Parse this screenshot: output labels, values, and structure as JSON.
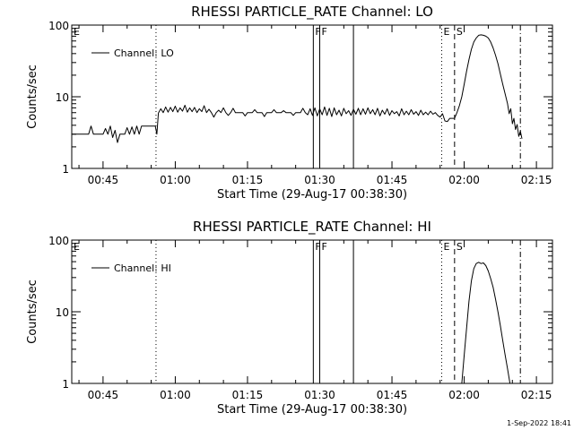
{
  "footer": {
    "timestamp": "1-Sep-2022 18:41"
  },
  "chart_data": [
    {
      "type": "line",
      "title": "RHESSI PARTICLE_RATE Channel: LO",
      "xlabel": "Start Time (29-Aug-17 00:38:30)",
      "ylabel": "Counts/sec",
      "yscale": "log",
      "xlim": [
        "00:38:30",
        "02:18:20"
      ],
      "ylim": [
        1,
        100
      ],
      "xtick_labels": [
        "00:45",
        "01:00",
        "01:15",
        "01:30",
        "01:45",
        "02:00",
        "02:15"
      ],
      "ytick_labels": [
        "1",
        "10",
        "100"
      ],
      "legend": {
        "entries": [
          "Channel: LO"
        ],
        "position": "top-left"
      },
      "markers": [
        {
          "time": "00:56:00",
          "style": "dotted",
          "label": ""
        },
        {
          "time": "01:28:40",
          "style": "solid",
          "label": "F"
        },
        {
          "time": "01:30:00",
          "style": "solid",
          "label": "F"
        },
        {
          "time": "01:37:00",
          "style": "solid",
          "label": ""
        },
        {
          "time": "01:55:20",
          "style": "dotted",
          "label": "E"
        },
        {
          "time": "01:58:00",
          "style": "dashed",
          "label": "S"
        },
        {
          "time": "02:11:40",
          "style": "dashdot",
          "label": ""
        }
      ],
      "edge_labels": [
        "E"
      ],
      "series": [
        {
          "name": "Channel: LO",
          "points": [
            [
              "00:38:30",
              3
            ],
            [
              "00:42:00",
              3
            ],
            [
              "00:42:30",
              3.9
            ],
            [
              "00:43:00",
              3
            ],
            [
              "00:45:00",
              3
            ],
            [
              "00:45:30",
              3.6
            ],
            [
              "00:46:00",
              3
            ],
            [
              "00:46:30",
              3.9
            ],
            [
              "00:47:00",
              2.7
            ],
            [
              "00:47:30",
              3.4
            ],
            [
              "00:48:00",
              2.3
            ],
            [
              "00:48:30",
              3
            ],
            [
              "00:49:30",
              3
            ],
            [
              "00:50:00",
              3.7
            ],
            [
              "00:50:30",
              3
            ],
            [
              "00:51:00",
              3.8
            ],
            [
              "00:51:30",
              3
            ],
            [
              "00:52:00",
              3.9
            ],
            [
              "00:52:30",
              3
            ],
            [
              "00:53:00",
              3.9
            ],
            [
              "00:55:50",
              3.9
            ],
            [
              "00:56:10",
              3
            ],
            [
              "00:56:30",
              5.9
            ],
            [
              "00:57:00",
              6.8
            ],
            [
              "00:57:30",
              6
            ],
            [
              "00:58:00",
              7.2
            ],
            [
              "00:58:30",
              6.1
            ],
            [
              "00:59:00",
              7.1
            ],
            [
              "00:59:30",
              6.2
            ],
            [
              "01:00:00",
              7.4
            ],
            [
              "01:00:30",
              6.1
            ],
            [
              "01:01:00",
              7
            ],
            [
              "01:01:30",
              6.3
            ],
            [
              "01:02:00",
              7.6
            ],
            [
              "01:02:30",
              6.1
            ],
            [
              "01:03:00",
              7
            ],
            [
              "01:03:30",
              6.2
            ],
            [
              "01:04:00",
              7.1
            ],
            [
              "01:04:30",
              6
            ],
            [
              "01:05:00",
              6.8
            ],
            [
              "01:05:30",
              6.2
            ],
            [
              "01:06:00",
              7.5
            ],
            [
              "01:06:30",
              6
            ],
            [
              "01:07:00",
              6.7
            ],
            [
              "01:07:30",
              6
            ],
            [
              "01:08:00",
              5.2
            ],
            [
              "01:08:30",
              6
            ],
            [
              "01:09:00",
              6.5
            ],
            [
              "01:09:30",
              6
            ],
            [
              "01:10:00",
              7
            ],
            [
              "01:10:30",
              6
            ],
            [
              "01:11:00",
              5.5
            ],
            [
              "01:11:30",
              6
            ],
            [
              "01:12:00",
              6.9
            ],
            [
              "01:12:30",
              6
            ],
            [
              "01:13:00",
              6
            ],
            [
              "01:14:00",
              6
            ],
            [
              "01:14:30",
              5.4
            ],
            [
              "01:15:00",
              6
            ],
            [
              "01:16:00",
              6
            ],
            [
              "01:16:30",
              6.6
            ],
            [
              "01:17:00",
              6
            ],
            [
              "01:18:00",
              6
            ],
            [
              "01:18:30",
              5.3
            ],
            [
              "01:19:00",
              6
            ],
            [
              "01:20:00",
              6
            ],
            [
              "01:20:30",
              6.6
            ],
            [
              "01:21:00",
              6
            ],
            [
              "01:22:00",
              6
            ],
            [
              "01:22:30",
              6.4
            ],
            [
              "01:23:00",
              6
            ],
            [
              "01:24:00",
              6
            ],
            [
              "01:24:30",
              5.5
            ],
            [
              "01:25:00",
              6
            ],
            [
              "01:26:00",
              6
            ],
            [
              "01:26:30",
              6.9
            ],
            [
              "01:27:00",
              6
            ],
            [
              "01:27:30",
              5.6
            ],
            [
              "01:28:00",
              6.8
            ],
            [
              "01:28:30",
              5.5
            ],
            [
              "01:29:00",
              7
            ],
            [
              "01:29:30",
              5.4
            ],
            [
              "01:30:00",
              6.8
            ],
            [
              "01:30:30",
              5.6
            ],
            [
              "01:31:00",
              7.2
            ],
            [
              "01:31:30",
              5.5
            ],
            [
              "01:32:00",
              6.9
            ],
            [
              "01:32:30",
              5.3
            ],
            [
              "01:33:00",
              7
            ],
            [
              "01:33:30",
              5.6
            ],
            [
              "01:34:00",
              6.5
            ],
            [
              "01:34:30",
              5.4
            ],
            [
              "01:35:00",
              6.9
            ],
            [
              "01:35:30",
              5.8
            ],
            [
              "01:36:00",
              6.4
            ],
            [
              "01:36:30",
              5.5
            ],
            [
              "01:37:00",
              6.7
            ],
            [
              "01:37:30",
              5.7
            ],
            [
              "01:38:00",
              6.9
            ],
            [
              "01:38:30",
              5.6
            ],
            [
              "01:39:00",
              6.8
            ],
            [
              "01:39:30",
              5.7
            ],
            [
              "01:40:00",
              7
            ],
            [
              "01:40:30",
              5.8
            ],
            [
              "01:41:00",
              6.6
            ],
            [
              "01:41:30",
              5.6
            ],
            [
              "01:42:00",
              6.9
            ],
            [
              "01:42:30",
              5.4
            ],
            [
              "01:43:00",
              6.5
            ],
            [
              "01:43:30",
              5.7
            ],
            [
              "01:44:00",
              6.8
            ],
            [
              "01:44:30",
              5.5
            ],
            [
              "01:45:00",
              6.4
            ],
            [
              "01:45:30",
              5.8
            ],
            [
              "01:46:00",
              6.2
            ],
            [
              "01:46:30",
              5.4
            ],
            [
              "01:47:00",
              6.8
            ],
            [
              "01:47:30",
              5.6
            ],
            [
              "01:48:00",
              6.3
            ],
            [
              "01:48:30",
              5.6
            ],
            [
              "01:49:00",
              6.6
            ],
            [
              "01:49:30",
              5.7
            ],
            [
              "01:50:00",
              6.2
            ],
            [
              "01:50:30",
              5.5
            ],
            [
              "01:51:00",
              6.5
            ],
            [
              "01:51:30",
              5.6
            ],
            [
              "01:52:00",
              6.1
            ],
            [
              "01:52:30",
              5.6
            ],
            [
              "01:53:00",
              6.3
            ],
            [
              "01:53:30",
              5.7
            ],
            [
              "01:54:00",
              6
            ],
            [
              "01:54:30",
              5.5
            ],
            [
              "01:55:00",
              5.2
            ],
            [
              "01:55:30",
              5.8
            ],
            [
              "01:56:00",
              4.6
            ],
            [
              "01:56:30",
              4.5
            ],
            [
              "01:57:00",
              5
            ],
            [
              "01:58:00",
              5
            ],
            [
              "01:58:30",
              6
            ],
            [
              "01:59:00",
              7.5
            ],
            [
              "01:59:30",
              10
            ],
            [
              "02:00:00",
              15
            ],
            [
              "02:00:30",
              23
            ],
            [
              "02:01:00",
              33
            ],
            [
              "02:01:30",
              46
            ],
            [
              "02:02:00",
              58
            ],
            [
              "02:02:30",
              66
            ],
            [
              "02:03:00",
              72
            ],
            [
              "02:03:30",
              73
            ],
            [
              "02:04:00",
              72
            ],
            [
              "02:04:30",
              70
            ],
            [
              "02:05:00",
              66
            ],
            [
              "02:05:30",
              58
            ],
            [
              "02:06:00",
              48
            ],
            [
              "02:06:30",
              38
            ],
            [
              "02:07:00",
              29
            ],
            [
              "02:07:30",
              21
            ],
            [
              "02:08:00",
              15
            ],
            [
              "02:08:30",
              11
            ],
            [
              "02:09:00",
              8
            ],
            [
              "02:09:20",
              5.8
            ],
            [
              "02:09:40",
              6.8
            ],
            [
              "02:10:00",
              4.2
            ],
            [
              "02:10:20",
              5
            ],
            [
              "02:10:40",
              3.5
            ],
            [
              "02:11:00",
              4.1
            ],
            [
              "02:11:20",
              2.8
            ],
            [
              "02:11:40",
              3.3
            ],
            [
              "02:12:00",
              2.6
            ]
          ]
        }
      ]
    },
    {
      "type": "line",
      "title": "RHESSI PARTICLE_RATE Channel: HI",
      "xlabel": "Start Time (29-Aug-17 00:38:30)",
      "ylabel": "Counts/sec",
      "yscale": "log",
      "xlim": [
        "00:38:30",
        "02:18:20"
      ],
      "ylim": [
        1,
        100
      ],
      "xtick_labels": [
        "00:45",
        "01:00",
        "01:15",
        "01:30",
        "01:45",
        "02:00",
        "02:15"
      ],
      "ytick_labels": [
        "1",
        "10",
        "100"
      ],
      "legend": {
        "entries": [
          "Channel: HI"
        ],
        "position": "top-left"
      },
      "markers": [
        {
          "time": "00:56:00",
          "style": "dotted",
          "label": ""
        },
        {
          "time": "01:28:40",
          "style": "solid",
          "label": "F"
        },
        {
          "time": "01:30:00",
          "style": "solid",
          "label": "F"
        },
        {
          "time": "01:37:00",
          "style": "solid",
          "label": ""
        },
        {
          "time": "01:55:20",
          "style": "dotted",
          "label": "E"
        },
        {
          "time": "01:58:00",
          "style": "dashed",
          "label": "S"
        },
        {
          "time": "02:11:40",
          "style": "dashdot",
          "label": ""
        }
      ],
      "edge_labels": [
        "E"
      ],
      "series": [
        {
          "name": "Channel: HI",
          "points": [
            [
              "01:59:30",
              1
            ],
            [
              "02:00:00",
              2.5
            ],
            [
              "02:00:30",
              6
            ],
            [
              "02:01:00",
              14
            ],
            [
              "02:01:30",
              27
            ],
            [
              "02:02:00",
              40
            ],
            [
              "02:02:30",
              47
            ],
            [
              "02:03:00",
              49
            ],
            [
              "02:03:30",
              47
            ],
            [
              "02:04:00",
              48
            ],
            [
              "02:04:30",
              44
            ],
            [
              "02:05:00",
              37
            ],
            [
              "02:05:30",
              29
            ],
            [
              "02:06:00",
              22
            ],
            [
              "02:06:30",
              15
            ],
            [
              "02:07:00",
              10
            ],
            [
              "02:07:30",
              6.5
            ],
            [
              "02:08:00",
              4
            ],
            [
              "02:08:30",
              2.5
            ],
            [
              "02:09:00",
              1.6
            ],
            [
              "02:09:30",
              1
            ]
          ]
        }
      ]
    }
  ]
}
